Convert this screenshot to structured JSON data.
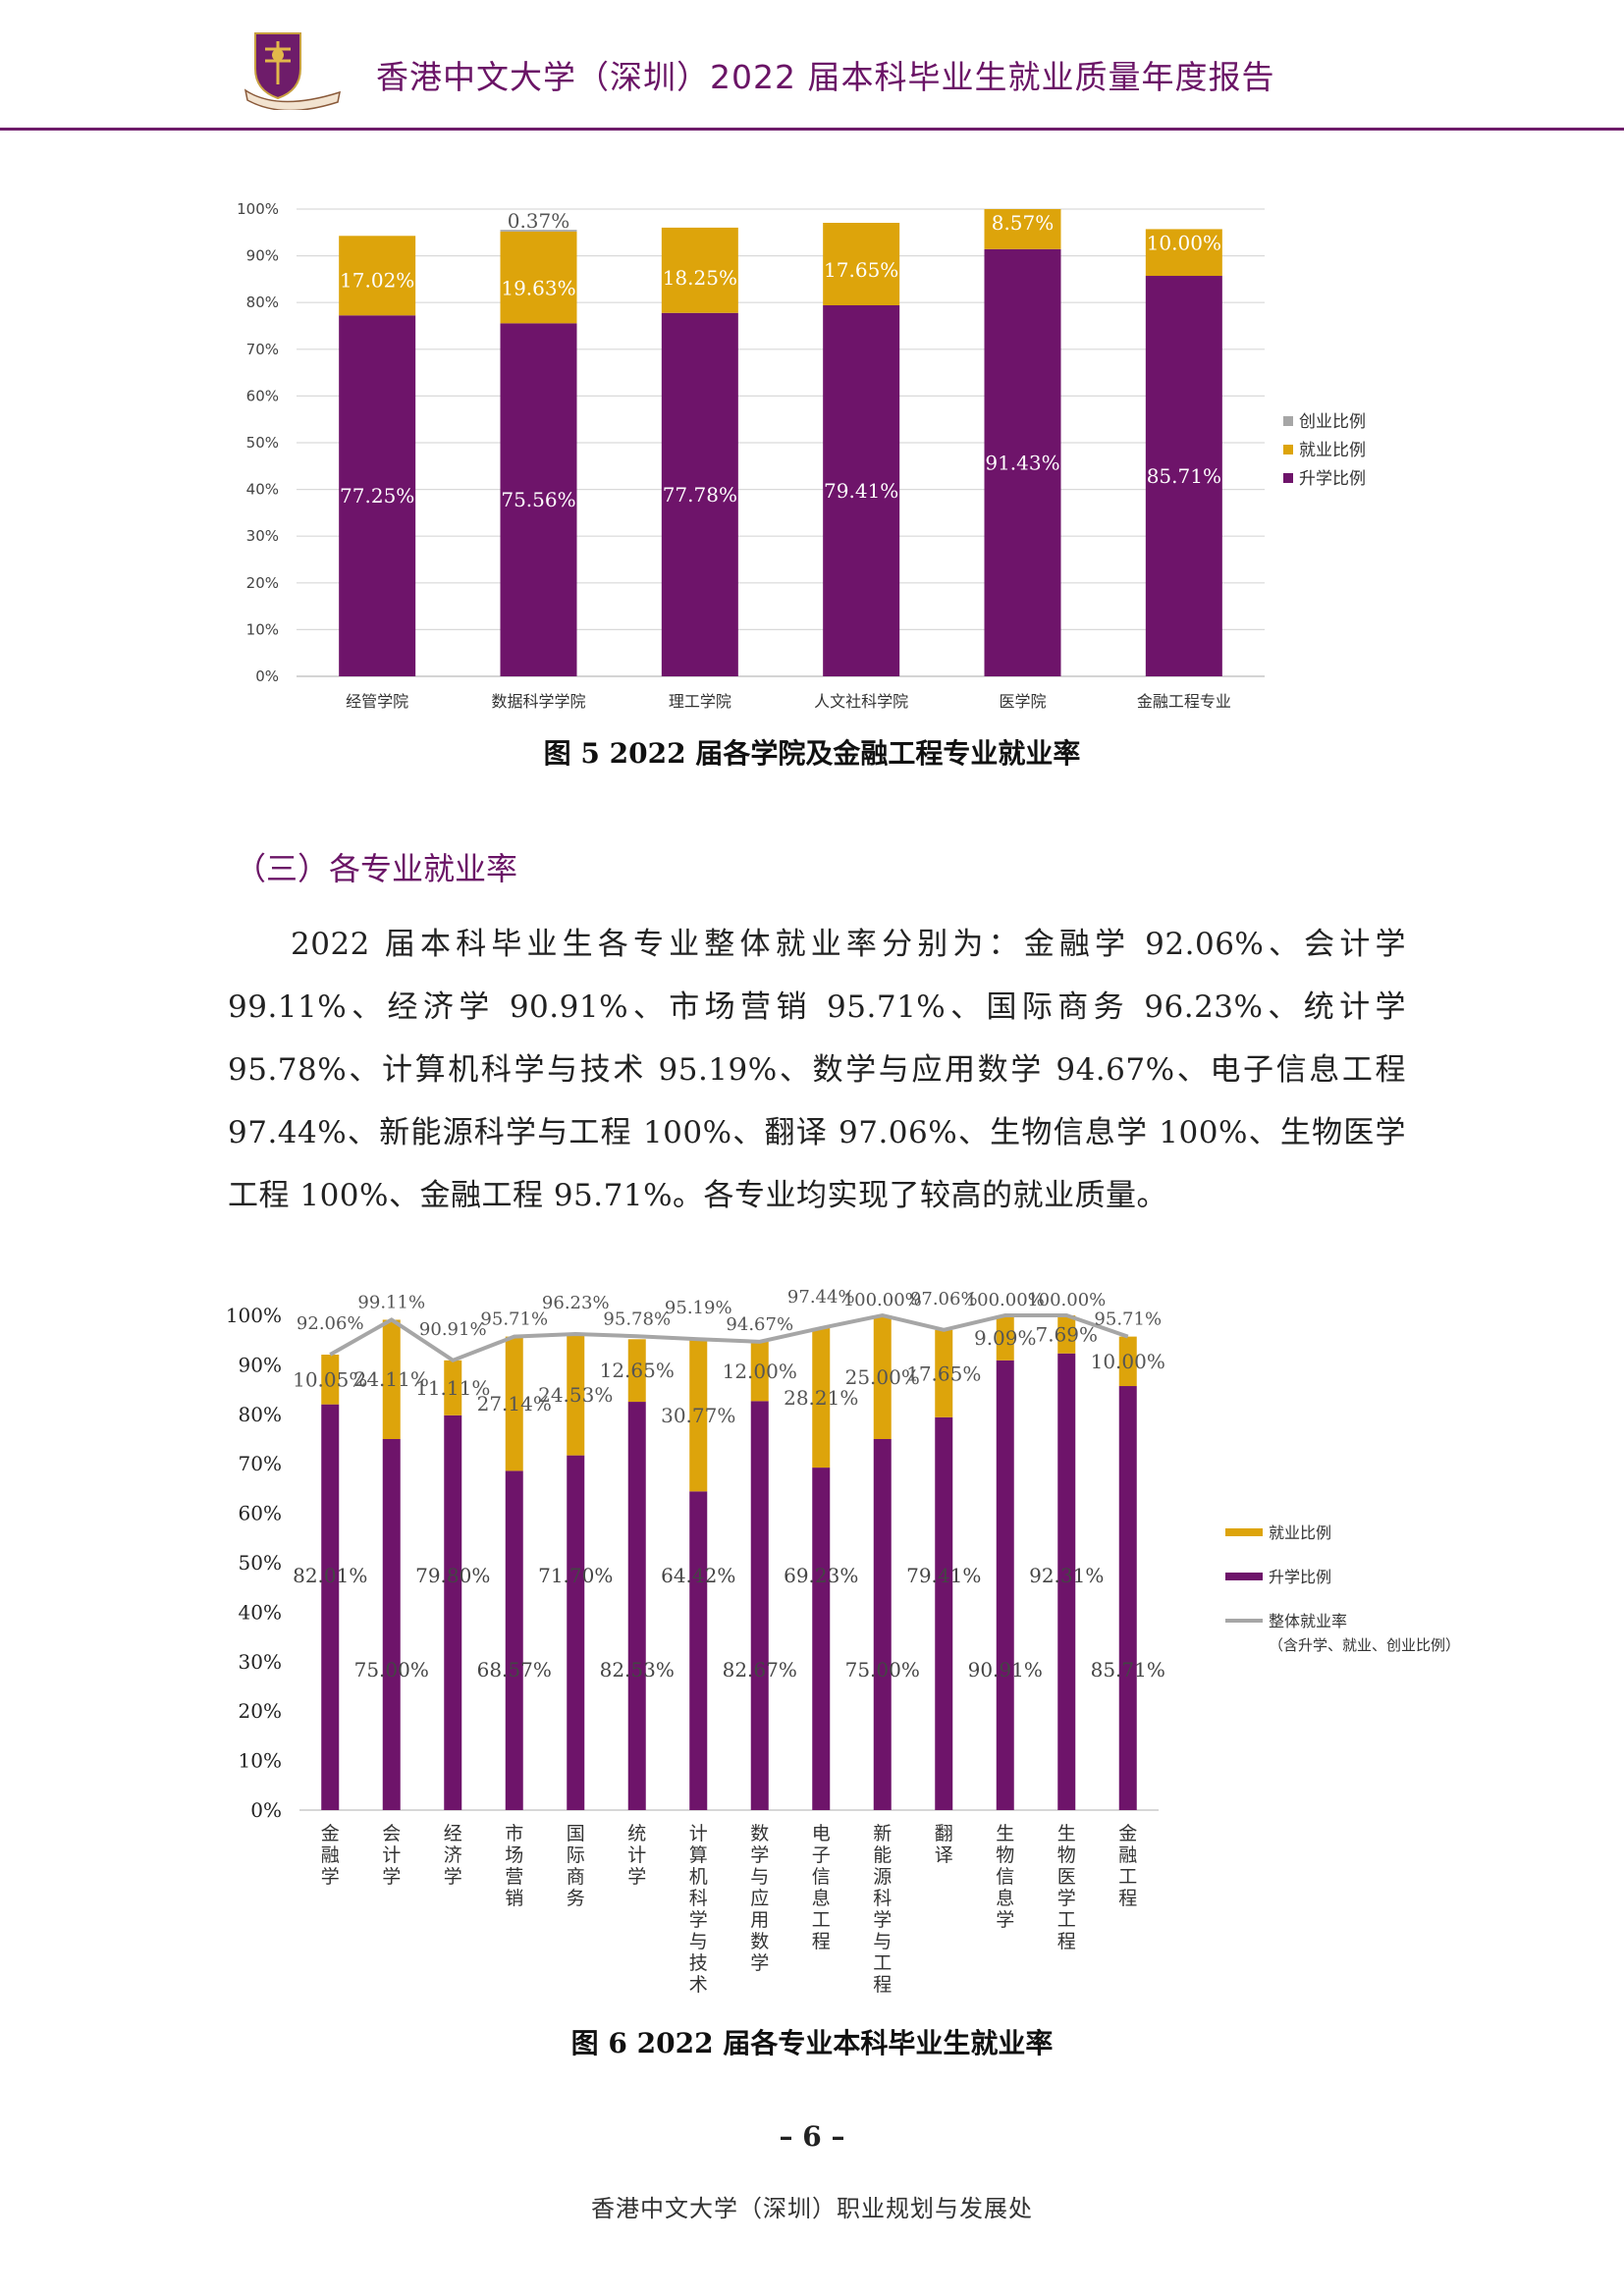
{
  "header": {
    "title": "香港中文大学（深圳）2022 届本科毕业生就业质量年度报告"
  },
  "colors": {
    "purple": "#6e146a",
    "gold": "#dda40b",
    "gray": "#a6a6a6",
    "header_accent": "#6e1c6a"
  },
  "figure5": {
    "caption": "图 5  2022 届各学院及金融工程专业就业率"
  },
  "section": {
    "heading": "（三）各专业就业率"
  },
  "paragraph": "2022 届本科毕业生各专业整体就业率分别为：金融学 92.06%、会计学 99.11%、经济学 90.91%、市场营销 95.71%、国际商务 96.23%、统计学 95.78%、计算机科学与技术 95.19%、数学与应用数学 94.67%、电子信息工程 97.44%、新能源科学与工程 100%、翻译 97.06%、生物信息学 100%、生物医学工程 100%、金融工程 95.71%。各专业均实现了较高的就业质量。",
  "figure6": {
    "caption": "图 6  2022 届各专业本科毕业生就业率"
  },
  "footer": {
    "page_number": "– 6 –",
    "office": "香港中文大学（深圳）职业规划与发展处"
  },
  "chart_data": [
    {
      "type": "bar",
      "stacked": true,
      "categories": [
        "经管学院",
        "数据科学学院",
        "理工学院",
        "人文社科学院",
        "医学院",
        "金融工程专业"
      ],
      "series": [
        {
          "name": "升学比例",
          "color": "#6e146a",
          "values": [
            77.25,
            75.56,
            77.78,
            79.41,
            91.43,
            85.71
          ],
          "labels": [
            "77.25%",
            "75.56%",
            "77.78%",
            "79.41%",
            "91.43%",
            "85.71%"
          ]
        },
        {
          "name": "就业比例",
          "color": "#dda40b",
          "values": [
            17.02,
            19.63,
            18.25,
            17.65,
            8.57,
            10.0
          ],
          "labels": [
            "17.02%",
            "19.63%",
            "18.25%",
            "17.65%",
            "8.57%",
            "10.00%"
          ]
        },
        {
          "name": "创业比例",
          "color": "#a6a6a6",
          "values": [
            0,
            0.37,
            0,
            0,
            0,
            0
          ],
          "labels": [
            "",
            "0.37%",
            "",
            "",
            "",
            ""
          ]
        }
      ],
      "legend_order": [
        2,
        1,
        0
      ],
      "yticks": [
        "0%",
        "10%",
        "20%",
        "30%",
        "40%",
        "50%",
        "60%",
        "70%",
        "80%",
        "90%",
        "100%"
      ],
      "ylim": [
        0,
        100
      ],
      "legend_position": "right",
      "grid": true
    },
    {
      "type": "bar",
      "stacked": true,
      "categories": [
        "金融学",
        "会计学",
        "经济学",
        "市场营销",
        "国际商务",
        "统计学",
        "计算机科学与技术",
        "数学与应用数学",
        "电子信息工程",
        "新能源科学与工程",
        "翻译",
        "生物信息学",
        "生物医学工程",
        "金融工程"
      ],
      "series": [
        {
          "name": "升学比例",
          "color": "#6e146a",
          "values": [
            82.01,
            75.0,
            79.8,
            68.57,
            71.7,
            82.53,
            64.42,
            82.67,
            69.23,
            75.0,
            79.41,
            90.91,
            92.31,
            85.71
          ],
          "labels": [
            "82.01%",
            "75.00%",
            "79.80%",
            "68.57%",
            "71.70%",
            "82.53%",
            "64.42%",
            "82.67%",
            "69.23%",
            "75.00%",
            "79.41%",
            "90.91%",
            "92.31%",
            "85.71%"
          ]
        },
        {
          "name": "就业比例",
          "color": "#dda40b",
          "values": [
            10.05,
            24.11,
            11.11,
            27.14,
            24.53,
            12.65,
            30.77,
            12.0,
            28.21,
            25.0,
            17.65,
            9.09,
            7.69,
            10.0
          ],
          "labels": [
            "10.05%",
            "24.11%",
            "11.11%",
            "27.14%",
            "24.53%",
            "12.65%",
            "30.77%",
            "12.00%",
            "28.21%",
            "25.00%",
            "17.65%",
            "9.09%",
            "7.69%",
            "10.00%"
          ]
        },
        {
          "name": "整体就业率",
          "type": "line",
          "color": "#a6a6a6",
          "values": [
            92.06,
            99.11,
            90.91,
            95.71,
            96.23,
            95.78,
            95.19,
            94.67,
            97.44,
            100.0,
            97.06,
            100.0,
            100.0,
            95.71
          ],
          "labels": [
            "92.06%",
            "99.11%",
            "90.91%",
            "95.71%",
            "96.23%",
            "95.78%",
            "95.19%",
            "94.67%",
            "97.44%",
            "100.00%",
            "97.06%",
            "100.00%",
            "100.00%",
            "95.71%"
          ]
        }
      ],
      "legend": [
        "就业比例",
        "升学比例",
        "整体就业率",
        "（含升学、就业、创业比例）"
      ],
      "yticks": [
        "0%",
        "10%",
        "20%",
        "30%",
        "40%",
        "50%",
        "60%",
        "70%",
        "80%",
        "90%",
        "100%"
      ],
      "ylim": [
        0,
        100
      ],
      "legend_position": "right",
      "grid": false
    }
  ]
}
